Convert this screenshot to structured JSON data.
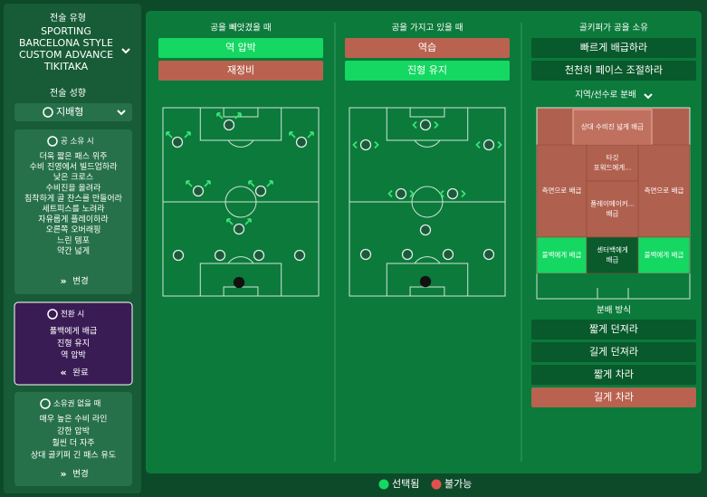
{
  "sidebar": {
    "style_label": "전술 유형",
    "style_name": [
      "SPORTING",
      "BARCELONA STYLE",
      "CUSTOM ADVANCE",
      "TIKITAKA"
    ],
    "mentality_label": "전술 성향",
    "mentality": "지배형",
    "panels": [
      {
        "title": "공 소유 시",
        "items": [
          "더욱 짧은 패스 위주",
          "수비 진영에서 빌드업하라",
          "낮은 크로스",
          "수비진을 올려라",
          "침착하게 골 찬스를 만들어라",
          "세트피스를 노려라",
          "자유롭게 플레이하라",
          "오른쪽 오버래핑",
          "느린 템포",
          "약간 넓게"
        ],
        "button": "변경",
        "color": "#27714a"
      },
      {
        "title": "전환 시",
        "items": [
          "풀백에게 배급",
          "진형 유지",
          "역 압박"
        ],
        "button": "완료",
        "color": "#3a1c55"
      },
      {
        "title": "소유권 없을 때",
        "items": [
          "매우 높은 수비 라인",
          "강한 압박",
          "훨씬 더 자주",
          "상대 골키퍼 긴 패스 유도"
        ],
        "button": "변경",
        "color": "#27714a"
      }
    ]
  },
  "columns": [
    {
      "title": "공을 빼앗겼을 때",
      "options": [
        {
          "label": "역 압박",
          "color": "#14d862"
        },
        {
          "label": "재정비",
          "color": "#b9624f"
        }
      ]
    },
    {
      "title": "공을 가지고 있을 때",
      "options": [
        {
          "label": "역습",
          "color": "#b9624f"
        },
        {
          "label": "진형 유지",
          "color": "#14d862"
        }
      ]
    },
    {
      "title": "골키퍼가 공을 소유",
      "options": [
        {
          "label": "빠르게 배급하라",
          "color": "#08592b"
        },
        {
          "label": "천천히 페이스 조절하라",
          "color": "#08592b"
        }
      ]
    }
  ],
  "distribution": {
    "dropdown": "지역/선수로 분배",
    "zones": [
      {
        "lines": [
          "상대 수비진 넓게 배급"
        ],
        "color": "#c0705e"
      },
      {
        "lines": [
          "타깃",
          "포워드에게..."
        ],
        "color": "#b0604e"
      },
      {
        "lines": [
          "측면으로 배급"
        ],
        "color": "#b0604e"
      },
      {
        "lines": [
          "측면으로 배급"
        ],
        "color": "#b0604e"
      },
      {
        "lines": [
          "플레이메이커...",
          "배급"
        ],
        "color": "#b0604e"
      },
      {
        "lines": [
          "풀백에게 배급"
        ],
        "color": "#14d862"
      },
      {
        "lines": [
          "센터백에게",
          "배급"
        ],
        "color": "#0a5a2c"
      },
      {
        "lines": [
          "풀백에게 배급"
        ],
        "color": "#14d862"
      }
    ],
    "method_title": "분배 방식",
    "methods": [
      {
        "label": "짧게 던져라",
        "color": "#08592b"
      },
      {
        "label": "길게 던져라",
        "color": "#08592b"
      },
      {
        "label": "짧게 차라",
        "color": "#08592b"
      },
      {
        "label": "길게 차라",
        "color": "#b9624f"
      }
    ]
  },
  "legend": [
    {
      "label": "선택됨",
      "color": "#14d862"
    },
    {
      "label": "불가능",
      "color": "#e05050"
    }
  ]
}
